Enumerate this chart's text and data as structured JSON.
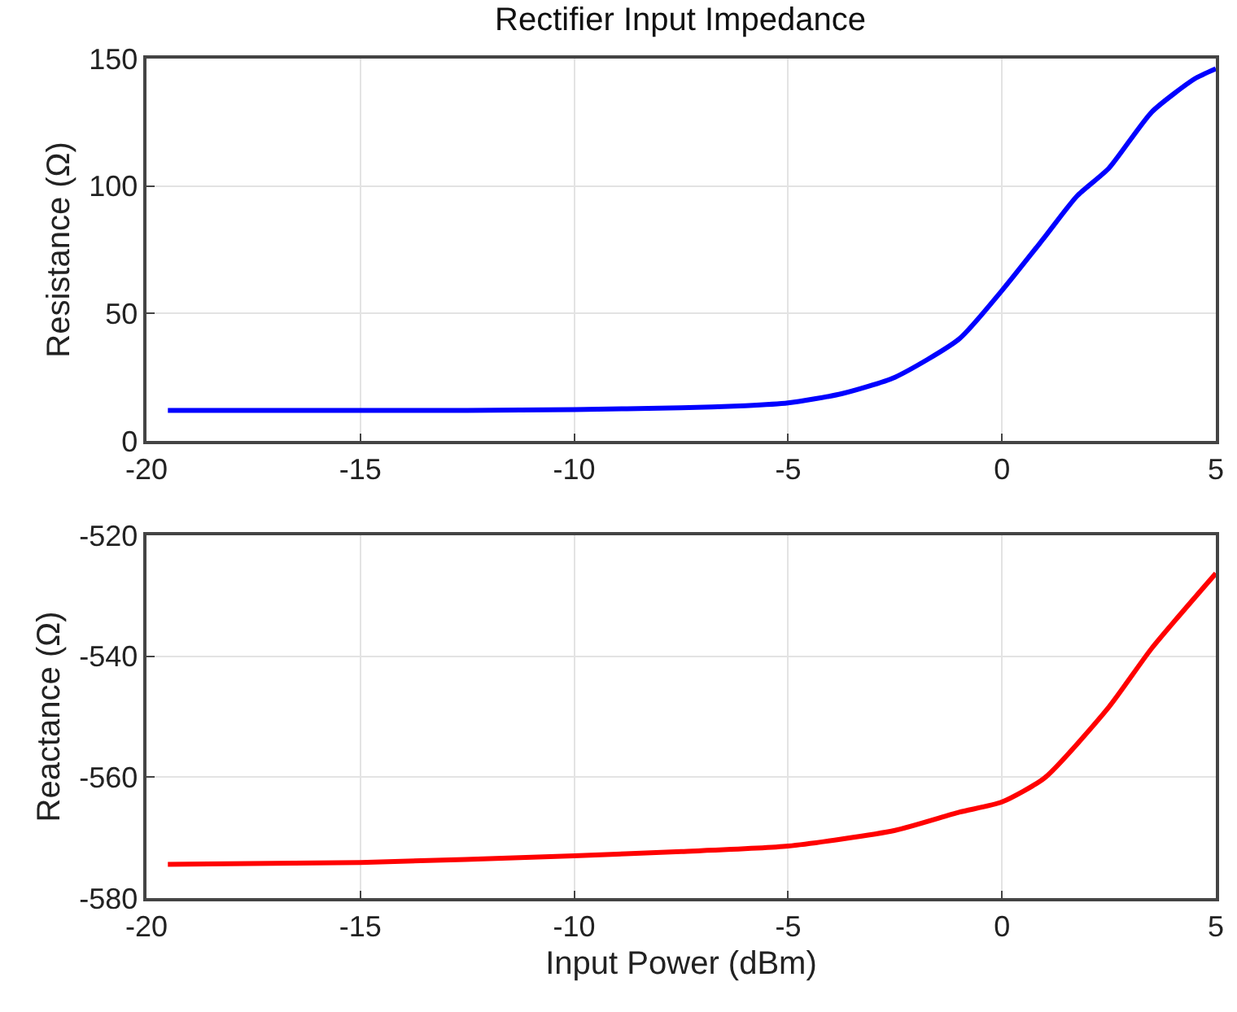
{
  "chart_data": [
    {
      "type": "line",
      "title": "Rectifier Input Impedance",
      "ylabel": "Resistance (Ω)",
      "x": [
        -19.5,
        -17.5,
        -15,
        -12.5,
        -10,
        -7.5,
        -6,
        -5,
        -3.75,
        -2.5,
        -1,
        0,
        1,
        1.75,
        2.5,
        3.5,
        4.5,
        5
      ],
      "series": [
        {
          "color": "#0000ff",
          "values": [
            12,
            12,
            12,
            12,
            12.3,
            13,
            13.8,
            14.9,
            18.5,
            25,
            40,
            59,
            80,
            96,
            107,
            129,
            142,
            146
          ]
        }
      ],
      "xlim": [
        -20,
        5
      ],
      "xticks": [
        -20,
        -15,
        -10,
        -5,
        0,
        5
      ],
      "ylim": [
        0,
        150
      ],
      "yticks": [
        0,
        50,
        100,
        150
      ],
      "grid": true,
      "line_style": "solid"
    },
    {
      "type": "line",
      "xlabel": "Input Power (dBm)",
      "ylabel": "Reactance (Ω)",
      "x": [
        -19.5,
        -15,
        -10,
        -7.5,
        -5,
        -2.5,
        -1,
        0,
        1,
        2.5,
        3.5,
        5
      ],
      "series": [
        {
          "color": "#ff0000",
          "values": [
            -574.4,
            -574.1,
            -573.0,
            -572.3,
            -571.4,
            -568.8,
            -565.8,
            -564.1,
            -560.1,
            -548.4,
            -538.7,
            -526.3
          ]
        }
      ],
      "xlim": [
        -20,
        5
      ],
      "xticks": [
        -20,
        -15,
        -10,
        -5,
        0,
        5
      ],
      "ylim": [
        -580,
        -520
      ],
      "yticks": [
        -580,
        -560,
        -540,
        -520
      ],
      "grid": true,
      "line_style": "solid"
    }
  ]
}
